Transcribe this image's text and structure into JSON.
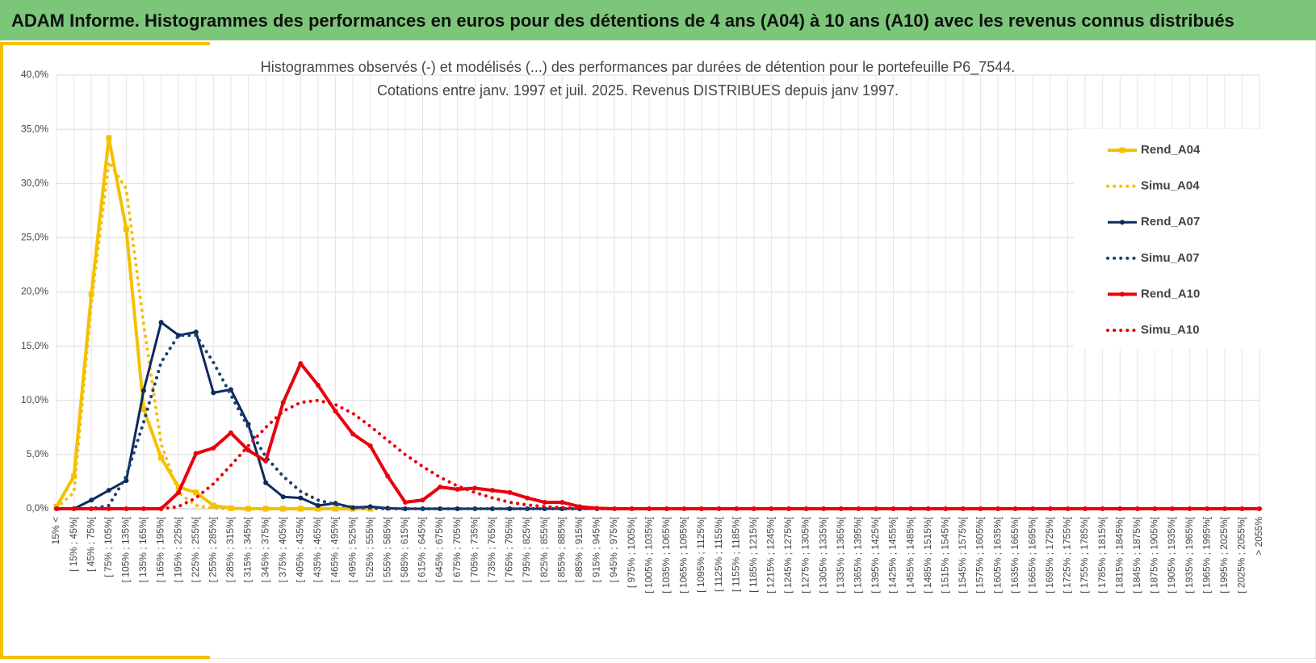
{
  "page_title": "ADAM Informe. Histogrammes des performances en euros pour des détentions de 4 ans (A04) à 10 ans (A10) avec les revenus connus distribués",
  "chart_data": {
    "type": "line",
    "title": [
      "Histogrammes observés (-) et modélisés (...) des performances par durées de détention pour  le portefeuille P6_7544.",
      "Cotations entre janv. 1997 et juil. 2025. Revenus DISTRIBUES depuis janv 1997."
    ],
    "categories": [
      "15% <",
      "[ 15% ; 45%[",
      "[ 45% ; 75%[",
      "[ 75% ; 105%[",
      "[ 105% ; 135%[",
      "[ 135% ; 165%[",
      "[ 165% ; 195%[",
      "[ 195% ; 225%[",
      "[ 225% ; 255%[",
      "[ 255% ; 285%[",
      "[ 285% ; 315%[",
      "[ 315% ; 345%[",
      "[ 345% ; 375%[",
      "[ 375% ; 405%[",
      "[ 405% ; 435%[",
      "[ 435% ; 465%[",
      "[ 465% ; 495%[",
      "[ 495% ; 525%[",
      "[ 525% ; 555%[",
      "[ 555% ; 585%[",
      "[ 585% ; 615%[",
      "[ 615% ; 645%[",
      "[ 645% ; 675%[",
      "[ 675% ; 705%[",
      "[ 705% ; 735%[",
      "[ 735% ; 765%[",
      "[ 765% ; 795%[",
      "[ 795% ; 825%[",
      "[ 825% ; 855%[",
      "[ 855% ; 885%[",
      "[ 885% ; 915%[",
      "[ 915% ; 945%[",
      "[ 945% ; 975%[",
      "[ 975% ; 1005%[",
      "[ 1005% ; 1035%[",
      "[ 1035% ; 1065%[",
      "[ 1065% ; 1095%[",
      "[ 1095% ; 1125%[",
      "[ 1125% ; 1155%[",
      "[ 1155% ; 1185%[",
      "[ 1185% ; 1215%[",
      "[ 1215% ; 1245%[",
      "[ 1245% ; 1275%[",
      "[ 1275% ; 1305%[",
      "[ 1305% ; 1335%[",
      "[ 1335% ; 1365%[",
      "[ 1365% ; 1395%[",
      "[ 1395% ; 1425%[",
      "[ 1425% ; 1455%[",
      "[ 1455% ; 1485%[",
      "[ 1485% ; 1515%[",
      "[ 1515% ; 1545%[",
      "[ 1545% ; 1575%[",
      "[ 1575% ; 1605%[",
      "[ 1605% ; 1635%[",
      "[ 1635% ; 1665%[",
      "[ 1665% ; 1695%[",
      "[ 1695% ; 1725%[",
      "[ 1725% ; 1755%[",
      "[ 1755% ; 1785%[",
      "[ 1785% ; 1815%[",
      "[ 1815% ; 1845%[",
      "[ 1845% ; 1875%[",
      "[ 1875% ; 1905%[",
      "[ 1905% ; 1935%[",
      "[ 1935% ; 1965%[",
      "[ 1965% ; 1995%[",
      "[ 1995% ; 2025%[",
      "[ 2025% ; 2055%[",
      "> 2055%"
    ],
    "series": [
      {
        "name": "Rend_A04",
        "color": "#f5c000",
        "dash": "solid",
        "marker": "square",
        "width": 4,
        "values": [
          0.2,
          3.0,
          19.8,
          34.2,
          25.8,
          9.2,
          4.7,
          2.0,
          1.5,
          0.3,
          0.05,
          0,
          0,
          0,
          0,
          0,
          0,
          0,
          0,
          null,
          null,
          null,
          null,
          null,
          null,
          null,
          null,
          null,
          null,
          null,
          null,
          null,
          null,
          null,
          null,
          null,
          null,
          null,
          null,
          null,
          null,
          null,
          null,
          null,
          null,
          null,
          null,
          null,
          null,
          null,
          null,
          null,
          null,
          null,
          null,
          null,
          null,
          null,
          null,
          null,
          null,
          null,
          null,
          null,
          null,
          null,
          null,
          null,
          null,
          null
        ]
      },
      {
        "name": "Simu_A04",
        "color": "#f5c000",
        "dash": "dotted",
        "marker": null,
        "width": 4,
        "values": [
          0.1,
          1.5,
          19,
          32,
          29.5,
          17,
          6,
          1.5,
          0.3,
          0.05,
          0,
          0,
          0,
          null,
          null,
          null,
          null,
          null,
          null,
          null,
          null,
          null,
          null,
          null,
          null,
          null,
          null,
          null,
          null,
          null,
          null,
          null,
          null,
          null,
          null,
          null,
          null,
          null,
          null,
          null,
          null,
          null,
          null,
          null,
          null,
          null,
          null,
          null,
          null,
          null,
          null,
          null,
          null,
          null,
          null,
          null,
          null,
          null,
          null,
          null,
          null,
          null,
          null,
          null,
          null,
          null,
          null,
          null,
          null,
          null
        ]
      },
      {
        "name": "Rend_A07",
        "color": "#0d2a5e",
        "dash": "solid",
        "marker": "circle",
        "width": 3,
        "values": [
          0,
          0,
          0.8,
          1.7,
          2.6,
          10.9,
          17.2,
          16.0,
          16.3,
          10.7,
          11.0,
          7.8,
          2.4,
          1.1,
          1.0,
          0.3,
          0.5,
          0.1,
          0.2,
          0.05,
          0,
          0,
          0,
          0,
          0,
          0,
          0,
          0,
          0,
          0,
          0,
          0,
          null,
          null,
          null,
          null,
          null,
          null,
          null,
          null,
          null,
          null,
          null,
          null,
          null,
          null,
          null,
          null,
          null,
          null,
          null,
          null,
          null,
          null,
          null,
          null,
          null,
          null,
          null,
          null,
          null,
          null,
          null,
          null,
          null,
          null,
          null,
          null,
          null,
          null
        ]
      },
      {
        "name": "Simu_A07",
        "color": "#1f3f6e",
        "dash": "dotted",
        "marker": null,
        "width": 4,
        "values": [
          0,
          0,
          0,
          0.3,
          3,
          8,
          13.5,
          16,
          16,
          13.5,
          10.5,
          7.5,
          4.8,
          3,
          1.6,
          0.8,
          0.4,
          0.15,
          0.05,
          0,
          0,
          0,
          0,
          0,
          0,
          0,
          0,
          0,
          0,
          0,
          0,
          null,
          null,
          null,
          null,
          null,
          null,
          null,
          null,
          null,
          null,
          null,
          null,
          null,
          null,
          null,
          null,
          null,
          null,
          null,
          null,
          null,
          null,
          null,
          null,
          null,
          null,
          null,
          null,
          null,
          null,
          null,
          null,
          null,
          null,
          null,
          null,
          null,
          null,
          null
        ]
      },
      {
        "name": "Rend_A10",
        "color": "#e8000c",
        "dash": "solid",
        "marker": "circle",
        "width": 4,
        "values": [
          0,
          0,
          0,
          0,
          0,
          0,
          0,
          1.5,
          5.1,
          5.6,
          7.0,
          5.4,
          4.4,
          9.8,
          13.4,
          11.4,
          9.0,
          6.9,
          5.8,
          3.0,
          0.6,
          0.8,
          2.0,
          1.8,
          1.9,
          1.7,
          1.5,
          1.0,
          0.6,
          0.6,
          0.2,
          0.05,
          0,
          0,
          0,
          0,
          0,
          0,
          0,
          0,
          0,
          0,
          0,
          0,
          0,
          0,
          0,
          0,
          0,
          0,
          0,
          0,
          0,
          0,
          0,
          0,
          0,
          0,
          0,
          0,
          0,
          0,
          0,
          0,
          0,
          0,
          0,
          0,
          0,
          0
        ]
      },
      {
        "name": "Simu_A10",
        "color": "#e8000c",
        "dash": "dotted",
        "marker": null,
        "width": 4,
        "values": [
          0,
          0,
          0,
          0,
          0,
          0,
          0,
          0.2,
          1,
          2.3,
          4,
          5.8,
          7.5,
          9,
          9.8,
          10,
          9.6,
          8.8,
          7.6,
          6.3,
          5,
          3.9,
          2.9,
          2.1,
          1.5,
          1.0,
          0.6,
          0.35,
          0.2,
          0.1,
          0.05,
          0,
          0,
          0,
          0,
          0,
          0,
          0,
          0,
          0,
          0,
          0,
          0,
          0,
          0,
          0,
          0,
          0,
          0,
          0,
          0,
          0,
          0,
          0,
          0,
          0,
          0,
          0,
          0,
          0,
          0,
          0,
          0,
          0,
          0,
          0,
          0,
          0,
          0,
          0
        ]
      }
    ],
    "ylim": [
      0,
      40
    ],
    "yticks": [
      {
        "value": 0,
        "label": "0,0%"
      },
      {
        "value": 5,
        "label": "5,0%"
      },
      {
        "value": 10,
        "label": "10,0%"
      },
      {
        "value": 15,
        "label": "15,0%"
      },
      {
        "value": 20,
        "label": "20,0%"
      },
      {
        "value": 25,
        "label": "25,0%"
      },
      {
        "value": 30,
        "label": "30,0%"
      },
      {
        "value": 35,
        "label": "35,0%"
      },
      {
        "value": 40,
        "label": "40,0%"
      }
    ],
    "grid": true,
    "legend": "right"
  }
}
